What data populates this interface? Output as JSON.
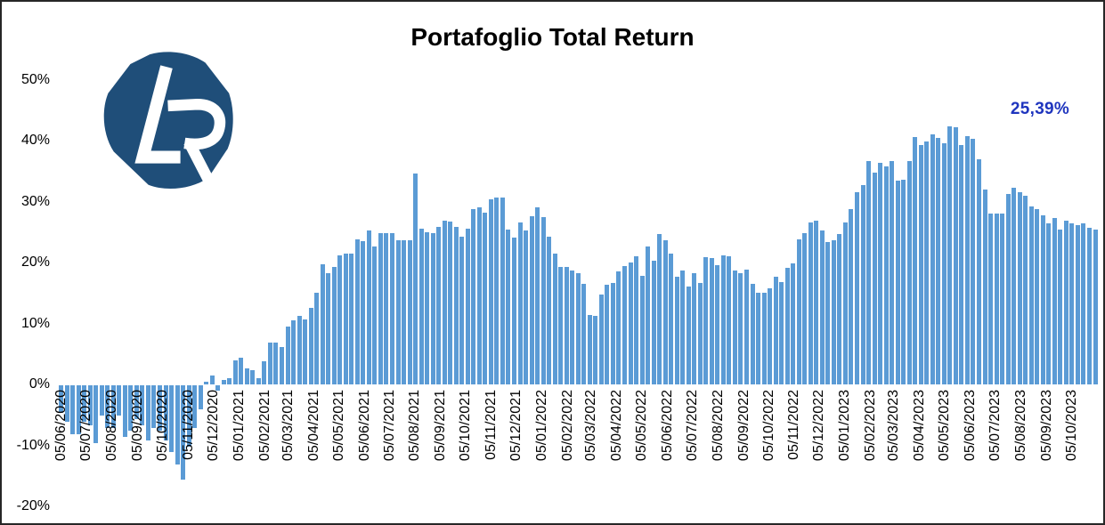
{
  "title": "Portafoglio Total Return",
  "final_value_label": "25,39%",
  "logo": {
    "letters": "LR",
    "color": "#1F4E79"
  },
  "colors": {
    "bar": "#5B9BD5",
    "annotation": "#1F35BE",
    "title": "#000000",
    "axis_text": "#000000"
  },
  "chart_data": {
    "type": "bar",
    "title": "Portafoglio Total Return",
    "xlabel": "",
    "ylabel": "",
    "ylim": [
      -20,
      50
    ],
    "grid": false,
    "legend": null,
    "annotation": "25,39%",
    "x_frequency": "weekly",
    "x_start_date": "05/06/2020",
    "y_ticks": [
      {
        "label": "50%",
        "value": 50
      },
      {
        "label": "40%",
        "value": 40
      },
      {
        "label": "30%",
        "value": 30
      },
      {
        "label": "20%",
        "value": 20
      },
      {
        "label": "10%",
        "value": 10
      },
      {
        "label": "0%",
        "value": 0
      },
      {
        "label": "-10%",
        "value": -10
      },
      {
        "label": "-20%",
        "value": -20
      }
    ],
    "x_tick_labels": [
      "05/06/2020",
      "05/07/2020",
      "05/08/2020",
      "05/09/2020",
      "05/10/2020",
      "05/11/2020",
      "05/12/2020",
      "05/01/2021",
      "05/02/2021",
      "05/03/2021",
      "05/04/2021",
      "05/05/2021",
      "05/06/2021",
      "05/07/2021",
      "05/08/2021",
      "05/09/2021",
      "05/10/2021",
      "05/11/2021",
      "05/12/2021",
      "05/01/2022",
      "05/02/2022",
      "05/03/2022",
      "05/04/2022",
      "05/05/2022",
      "05/06/2022",
      "05/07/2022",
      "05/08/2022",
      "05/09/2022",
      "05/10/2022",
      "05/11/2022",
      "05/12/2022",
      "05/01/2023",
      "05/02/2023",
      "05/03/2023",
      "05/04/2023",
      "05/05/2023",
      "05/06/2023",
      "05/07/2023",
      "05/08/2023",
      "05/09/2023",
      "05/10/2023"
    ],
    "values": [
      -4.5,
      -6,
      -8,
      -8,
      -6,
      -6.5,
      -9.5,
      -5,
      -7,
      -7,
      -5,
      -8.5,
      -7.5,
      -5.5,
      -6.5,
      -9,
      -7,
      -7.5,
      -9,
      -11,
      -13,
      -15.5,
      -10,
      -7,
      -4,
      0.5,
      1.5,
      -0.9,
      0.7,
      1,
      3.9,
      4.4,
      2.7,
      2.4,
      1,
      3.8,
      6.9,
      6.8,
      6.2,
      9.5,
      10.5,
      11.2,
      10.7,
      12.5,
      15.1,
      19.7,
      18.2,
      19.2,
      21.2,
      21.4,
      21.4,
      23.8,
      23.5,
      25.2,
      22.6,
      24.8,
      24.8,
      24.8,
      23.7,
      23.6,
      23.7,
      34.6,
      25.5,
      24.9,
      24.8,
      25.8,
      26.9,
      26.7,
      25.9,
      24.2,
      25.5,
      28.7,
      29,
      28.2,
      30.4,
      30.6,
      30.7,
      25.4,
      24.1,
      26.5,
      25.2,
      27.6,
      29,
      27.5,
      24.2,
      21.4,
      19.3,
      19.2,
      18.7,
      18.2,
      16.5,
      11.4,
      11.2,
      14.7,
      16.4,
      16.6,
      18.6,
      19.4,
      20,
      21,
      17.8,
      22.6,
      20.3,
      24.7,
      23.7,
      21.4,
      17.6,
      18.7,
      16,
      18.3,
      16.6,
      20.9,
      20.8,
      19.6,
      21.1,
      21,
      18.7,
      18.2,
      18.9,
      16.5,
      15,
      15.1,
      15.8,
      17.7,
      16.8,
      19.1,
      19.9,
      23.8,
      24.8,
      26.5,
      26.9,
      25.2,
      23.3,
      23.7,
      24.6,
      26.5,
      28.7,
      31.6,
      32.7,
      36.7,
      34.8,
      36.4,
      35.8,
      36.6,
      33.5,
      33.6,
      36.6,
      40.6,
      39.2,
      39.8,
      41,
      40.5,
      39.5,
      42.4,
      42.2,
      39.2,
      40.8,
      40.3,
      37,
      31.9,
      28.1,
      28.1,
      28.1,
      31.2,
      32.2,
      31.5,
      30.9,
      29.2,
      28.8,
      27.8,
      26.4,
      27.3,
      25.4,
      26.8,
      26.4,
      26.2,
      26.4,
      25.7,
      25.39
    ]
  }
}
